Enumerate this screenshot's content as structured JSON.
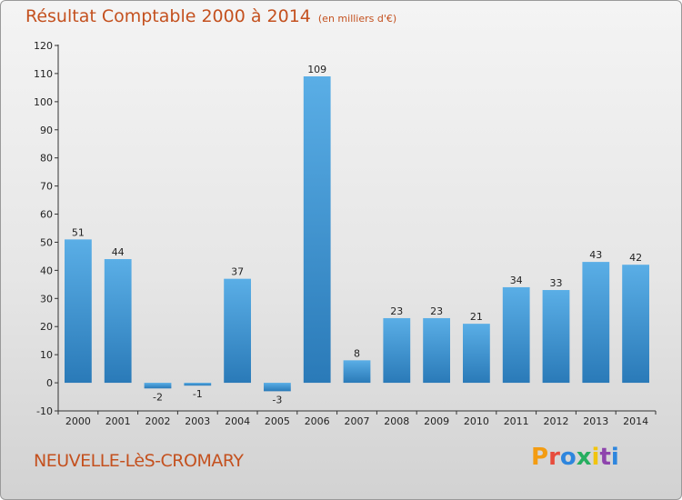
{
  "header": {
    "title": "Résultat Comptable 2000 à 2014",
    "subtitle": "(en milliers d'€)"
  },
  "footer": {
    "commune": "NEUVELLE-LèS-CROMARY",
    "logo_text": "Proxiti",
    "logo_colors": [
      "#f39c12",
      "#e74c3c",
      "#2e86de",
      "#27ae60",
      "#f1c40f",
      "#8e44ad",
      "#2e86de"
    ]
  },
  "colors": {
    "bar_light": "#5aaee6",
    "bar_dark": "#2a7ab8",
    "accent": "#c4511f"
  },
  "chart_data": {
    "type": "bar",
    "title": "Résultat Comptable 2000 à 2014",
    "subtitle": "(en milliers d'€)",
    "xlabel": "",
    "ylabel": "",
    "ylim": [
      -10,
      120
    ],
    "yticks": [
      -10,
      0,
      10,
      20,
      30,
      40,
      50,
      60,
      70,
      80,
      90,
      100,
      110,
      120
    ],
    "grid": false,
    "categories": [
      "2000",
      "2001",
      "2002",
      "2003",
      "2004",
      "2005",
      "2006",
      "2007",
      "2008",
      "2009",
      "2010",
      "2011",
      "2012",
      "2013",
      "2014"
    ],
    "values": [
      51,
      44,
      -2,
      -1,
      37,
      -3,
      109,
      8,
      23,
      23,
      21,
      34,
      33,
      43,
      42
    ]
  }
}
